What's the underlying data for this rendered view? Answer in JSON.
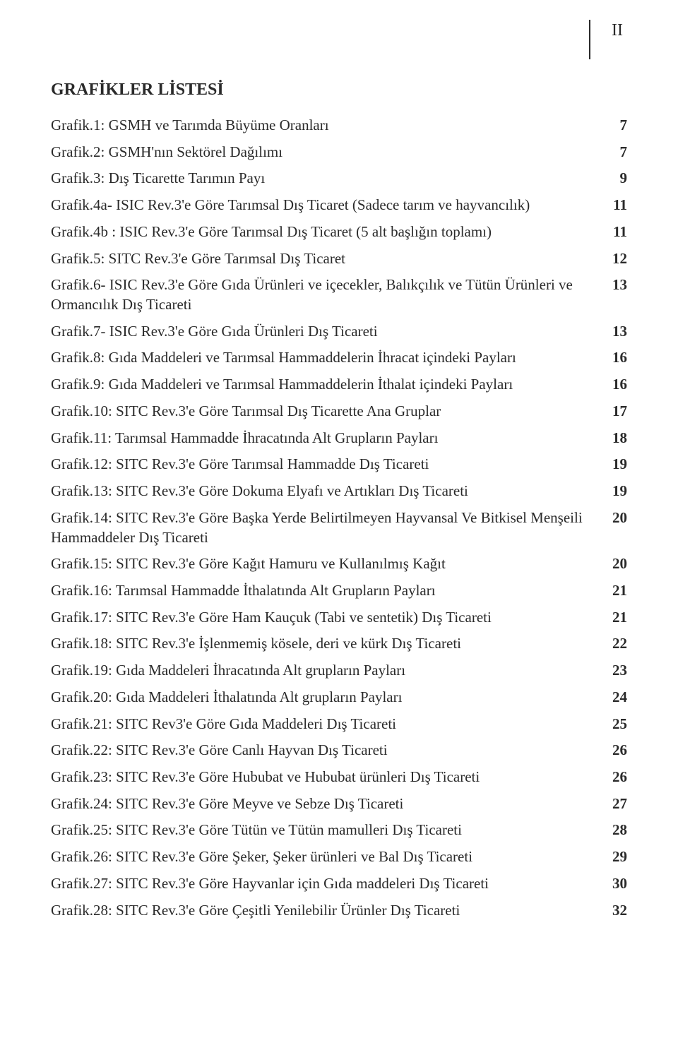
{
  "page_marker": "II",
  "section_title": "GRAFİKLER LİSTESİ",
  "entries": [
    {
      "label": "Grafik.1: GSMH ve Tarımda Büyüme Oranları",
      "page": "7"
    },
    {
      "label": "Grafik.2: GSMH'nın Sektörel Dağılımı",
      "page": "7"
    },
    {
      "label": "Grafik.3: Dış Ticarette Tarımın Payı",
      "page": "9"
    },
    {
      "label": "Grafik.4a- ISIC Rev.3'e Göre Tarımsal Dış Ticaret (Sadece tarım ve hayvancılık)",
      "page": "11"
    },
    {
      "label": "Grafik.4b  : ISIC Rev.3'e Göre Tarımsal Dış Ticaret (5 alt başlığın toplamı)",
      "page": "11"
    },
    {
      "label": "Grafik.5: SITC Rev.3'e Göre Tarımsal Dış Ticaret",
      "page": "12"
    },
    {
      "label": "Grafik.6- ISIC Rev.3'e Göre Gıda Ürünleri ve içecekler, Balıkçılık ve Tütün Ürünleri ve Ormancılık Dış Ticareti",
      "page": "13"
    },
    {
      "label": "Grafik.7- ISIC Rev.3'e Göre Gıda Ürünleri Dış Ticareti",
      "page": "13"
    },
    {
      "label": "Grafik.8: Gıda Maddeleri ve Tarımsal Hammaddelerin İhracat içindeki Payları",
      "page": "16"
    },
    {
      "label": "Grafik.9: Gıda Maddeleri ve Tarımsal Hammaddelerin İthalat içindeki Payları",
      "page": "16"
    },
    {
      "label": "Grafik.10: SITC Rev.3'e Göre Tarımsal Dış Ticarette Ana Gruplar",
      "page": "17"
    },
    {
      "label": "Grafik.11: Tarımsal Hammadde İhracatında Alt Grupların Payları",
      "page": "18"
    },
    {
      "label": "Grafik.12: SITC Rev.3'e Göre Tarımsal Hammadde Dış Ticareti",
      "page": "19"
    },
    {
      "label": "Grafik.13: SITC Rev.3'e Göre Dokuma Elyafı ve Artıkları Dış Ticareti",
      "page": "19"
    },
    {
      "label": "Grafik.14: SITC Rev.3'e Göre Başka Yerde Belirtilmeyen Hayvansal Ve Bitkisel Menşeili Hammaddeler Dış Ticareti",
      "page": "20"
    },
    {
      "label": "Grafik.15: SITC Rev.3'e Göre Kağıt Hamuru ve Kullanılmış Kağıt",
      "page": "20"
    },
    {
      "label": "Grafik.16: Tarımsal Hammadde İthalatında Alt Grupların Payları",
      "page": "21"
    },
    {
      "label": "Grafik.17: SITC Rev.3'e Göre Ham Kauçuk (Tabi ve sentetik) Dış Ticareti",
      "page": "21"
    },
    {
      "label": "Grafik.18: SITC Rev.3'e İşlenmemiş kösele, deri ve kürk Dış Ticareti",
      "page": "22"
    },
    {
      "label": "Grafik.19: Gıda Maddeleri İhracatında Alt grupların Payları",
      "page": "23"
    },
    {
      "label": "Grafik.20: Gıda Maddeleri İthalatında Alt grupların Payları",
      "page": "24"
    },
    {
      "label": "Grafik.21: SITC Rev3'e Göre Gıda Maddeleri Dış Ticareti",
      "page": "25"
    },
    {
      "label": "Grafik.22: SITC Rev.3'e Göre Canlı Hayvan Dış Ticareti",
      "page": "26"
    },
    {
      "label": "Grafik.23: SITC Rev.3'e Göre Hububat ve Hububat ürünleri Dış Ticareti",
      "page": "26"
    },
    {
      "label": "Grafik.24: SITC Rev.3'e Göre Meyve ve Sebze Dış Ticareti",
      "page": "27"
    },
    {
      "label": "Grafik.25: SITC Rev.3'e Göre Tütün ve Tütün mamulleri Dış Ticareti",
      "page": "28"
    },
    {
      "label": "Grafik.26: SITC Rev.3'e Göre Şeker, Şeker ürünleri ve Bal Dış Ticareti",
      "page": "29"
    },
    {
      "label": "Grafik.27: SITC Rev.3'e Göre Hayvanlar için Gıda maddeleri Dış Ticareti",
      "page": "30"
    },
    {
      "label": "Grafik.28: SITC Rev.3'e Göre Çeşitli Yenilebilir Ürünler Dış Ticareti",
      "page": "32"
    }
  ]
}
